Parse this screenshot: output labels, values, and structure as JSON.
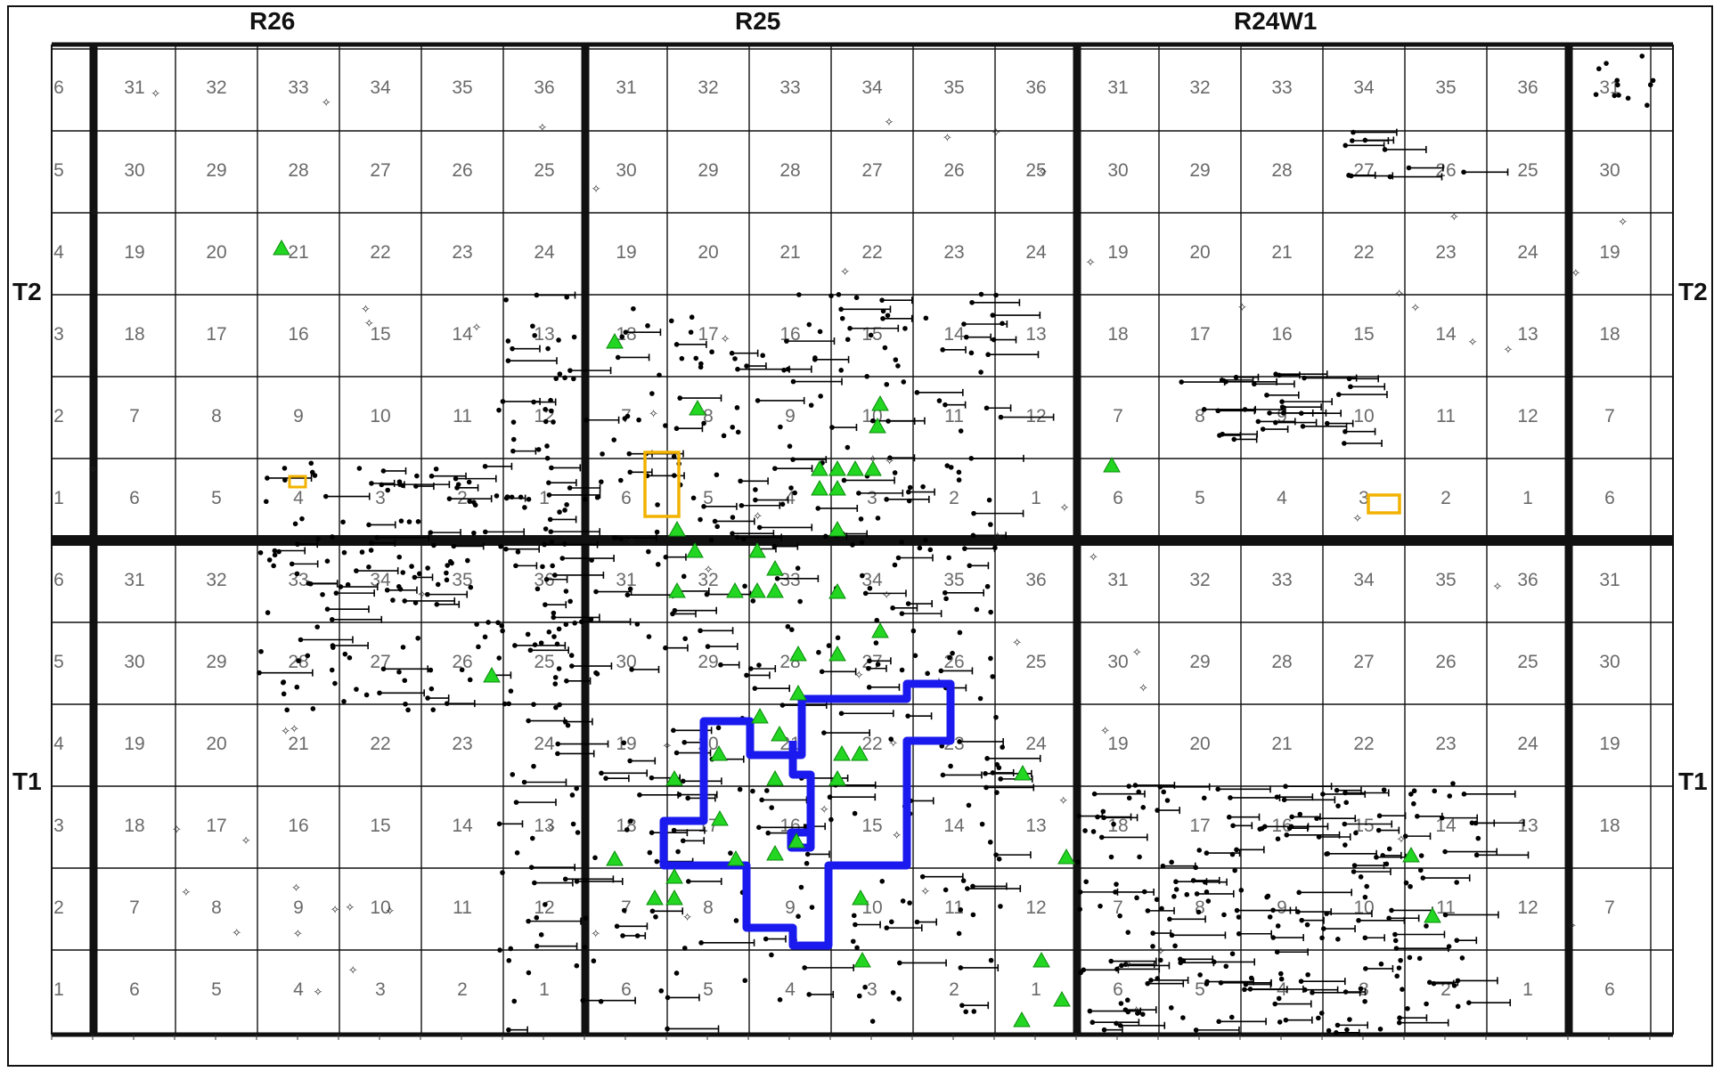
{
  "ranges": [
    {
      "label": "R26"
    },
    {
      "label": "R25"
    },
    {
      "label": "R24W1"
    }
  ],
  "townships": [
    {
      "label": "T2"
    },
    {
      "label": "T1"
    }
  ],
  "section_rows": [
    [
      "6",
      "31",
      "32",
      "33",
      "34",
      "35",
      "36",
      "31",
      "32",
      "33",
      "34",
      "35",
      "36",
      "31",
      "32",
      "33",
      "34",
      "35",
      "36",
      "31"
    ],
    [
      "5",
      "30",
      "29",
      "28",
      "27",
      "26",
      "25",
      "30",
      "29",
      "28",
      "27",
      "26",
      "25",
      "30",
      "29",
      "28",
      "27",
      "26",
      "25",
      "30"
    ],
    [
      "4",
      "19",
      "20",
      "21",
      "22",
      "23",
      "24",
      "19",
      "20",
      "21",
      "22",
      "23",
      "24",
      "19",
      "20",
      "21",
      "22",
      "23",
      "24",
      "19"
    ],
    [
      "3",
      "18",
      "17",
      "16",
      "15",
      "14",
      "13",
      "18",
      "17",
      "16",
      "15",
      "14",
      "13",
      "18",
      "17",
      "16",
      "15",
      "14",
      "13",
      "18"
    ],
    [
      "2",
      "7",
      "8",
      "9",
      "10",
      "11",
      "12",
      "7",
      "8",
      "9",
      "10",
      "11",
      "12",
      "7",
      "8",
      "9",
      "10",
      "11",
      "12",
      "7"
    ],
    [
      "1",
      "6",
      "5",
      "4",
      "3",
      "2",
      "1",
      "6",
      "5",
      "4",
      "3",
      "2",
      "1",
      "6",
      "5",
      "4",
      "3",
      "2",
      "1",
      "6"
    ],
    [
      "6",
      "31",
      "32",
      "33",
      "34",
      "35",
      "36",
      "31",
      "32",
      "33",
      "34",
      "35",
      "36",
      "31",
      "32",
      "33",
      "34",
      "35",
      "36",
      "31"
    ],
    [
      "5",
      "30",
      "29",
      "28",
      "27",
      "26",
      "25",
      "30",
      "29",
      "28",
      "27",
      "26",
      "25",
      "30",
      "29",
      "28",
      "27",
      "26",
      "25",
      "30"
    ],
    [
      "4",
      "19",
      "20",
      "21",
      "22",
      "23",
      "24",
      "19",
      "20",
      "21",
      "22",
      "23",
      "24",
      "19",
      "20",
      "21",
      "22",
      "23",
      "24",
      "19"
    ],
    [
      "3",
      "18",
      "17",
      "16",
      "15",
      "14",
      "13",
      "18",
      "17",
      "16",
      "15",
      "14",
      "13",
      "18",
      "17",
      "16",
      "15",
      "14",
      "13",
      "18"
    ],
    [
      "2",
      "7",
      "8",
      "9",
      "10",
      "11",
      "12",
      "7",
      "8",
      "9",
      "10",
      "11",
      "12",
      "7",
      "8",
      "9",
      "10",
      "11",
      "12",
      "7"
    ],
    [
      "1",
      "6",
      "5",
      "4",
      "3",
      "2",
      "1",
      "6",
      "5",
      "4",
      "3",
      "2",
      "1",
      "6",
      "5",
      "4",
      "3",
      "2",
      "1",
      "6"
    ]
  ],
  "colors": {
    "grid": "#111111",
    "section_label": "#6a6a6a",
    "well": "#000000",
    "unit_outline": "#1a1aee",
    "lease_outline": "#f2b200",
    "marker_fill": "#22d622"
  },
  "icons": {
    "well_symbol": "dot-icon",
    "dry_hole_symbol": "star-icon",
    "facility_symbol": "triangle-icon"
  }
}
